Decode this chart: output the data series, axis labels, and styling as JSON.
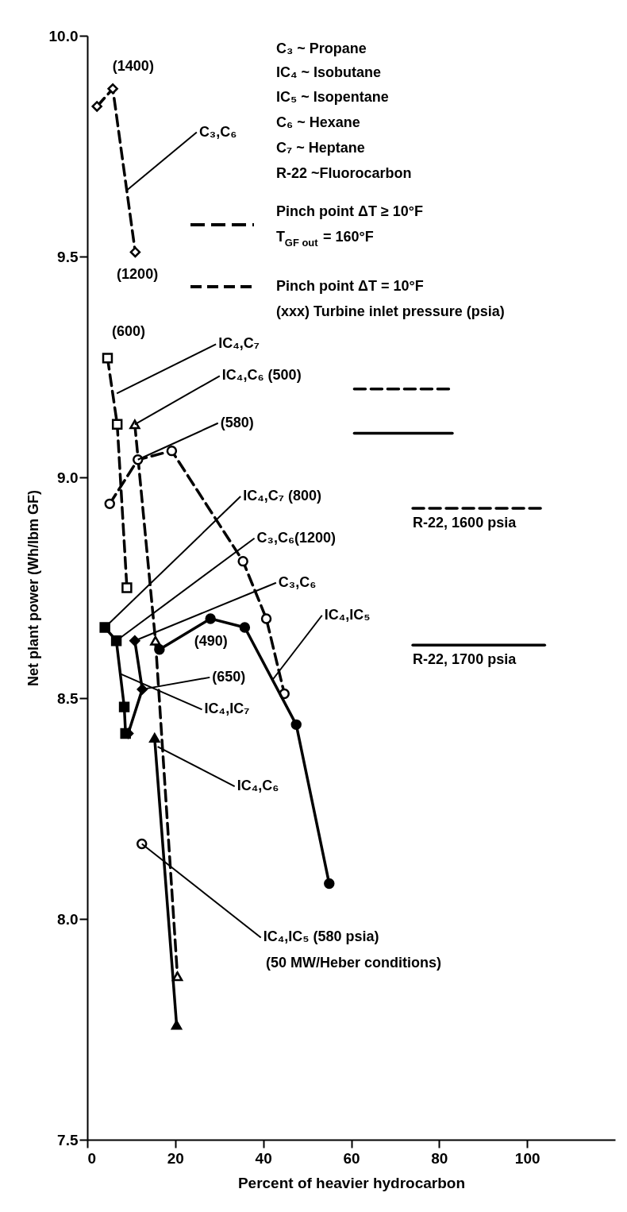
{
  "chart_data": {
    "type": "line",
    "xlabel": "Percent of heavier hydrocarbon",
    "ylabel": "Net plant power (Wh/lbm GF)",
    "xlim": [
      0,
      120
    ],
    "ylim": [
      7.5,
      10
    ],
    "xticks": [
      0,
      20,
      40,
      60,
      80,
      100
    ],
    "yticks": [
      {
        "value": 7.5,
        "label": "7.5"
      },
      {
        "value": 8,
        "label": "8.0"
      },
      {
        "value": 8.5,
        "label": "8.5"
      },
      {
        "value": 9,
        "label": "9.0"
      },
      {
        "value": 9.5,
        "label": "9.5"
      },
      {
        "value": 10,
        "label": "10.0"
      }
    ],
    "grid": false,
    "legend": "right",
    "series": [
      {
        "color": "#000000",
        "x": [
          2.2,
          5.8,
          10.9
        ],
        "values": [
          9.84,
          9.88,
          9.51
        ],
        "line_style": "dashed",
        "marker": "diamond"
      },
      {
        "color": "#000000",
        "x": [
          4.6,
          6.8,
          9.0
        ],
        "values": [
          9.27,
          9.12,
          8.75
        ],
        "line_style": "dashed",
        "marker": "square"
      },
      {
        "color": "#000000",
        "x": [
          10.8,
          15.5,
          20.5
        ],
        "values": [
          9.12,
          8.63,
          7.87
        ],
        "line_style": "dashed",
        "marker": "triangle"
      },
      {
        "color": "#000000",
        "x": [
          15.3,
          20.3
        ],
        "values": [
          8.41,
          7.76
        ],
        "line_style": "solid",
        "marker": "triangle"
      },
      {
        "color": "#000000",
        "x": [
          5.1,
          11.5,
          19.2,
          35.4,
          40.7,
          44.8
        ],
        "values": [
          8.94,
          9.04,
          9.06,
          8.81,
          8.68,
          8.51
        ],
        "line_style": "dashed",
        "marker": "circle"
      },
      {
        "color": "#000000",
        "x": [
          16.4,
          28,
          35.8,
          47.5,
          55
        ],
        "values": [
          8.61,
          8.68,
          8.66,
          8.44,
          8.08
        ],
        "line_style": "solid",
        "marker": "circle"
      },
      {
        "color": "#000000",
        "x": [
          4.0,
          6.6,
          8.4,
          8.7
        ],
        "values": [
          8.66,
          8.63,
          8.48,
          8.42
        ],
        "line_style": "solid",
        "marker": "square"
      },
      {
        "color": "#000000",
        "x": [
          10.8,
          12.5,
          9.3
        ],
        "values": [
          8.63,
          8.52,
          8.42
        ],
        "line_style": "solid",
        "marker": "diamond"
      },
      {
        "type": "scatter",
        "color": "#000000",
        "x": [
          12.4
        ],
        "values": [
          8.17
        ],
        "line_style": "dashed",
        "marker": "circle"
      },
      {
        "color": "#000000",
        "x": [
          60.7,
          83
        ],
        "values": [
          9.2,
          9.2
        ],
        "line_style": "dashed",
        "marker": "none"
      },
      {
        "color": "#000000",
        "x": [
          60.7,
          83
        ],
        "values": [
          9.1,
          9.1
        ],
        "line_style": "solid",
        "marker": "none"
      },
      {
        "name": "R-22, 1600 psia",
        "color": "#000000",
        "x": [
          74,
          104
        ],
        "values": [
          8.93,
          8.93
        ],
        "line_style": "dashed",
        "marker": "none"
      },
      {
        "name": "R-22, 1700 psia",
        "color": "#000000",
        "x": [
          74,
          104
        ],
        "values": [
          8.62,
          8.62
        ],
        "line_style": "solid",
        "marker": "none"
      }
    ],
    "annotations": [
      "C₃ ~ Propane",
      "IC₄ ~ Isobutane",
      "IC₅ ~ Isopentane",
      "C₆ ~ Hexane",
      "C₇ ~ Heptane",
      "R-22 ~Fluorocarbon",
      "Pinch point ΔT ≥ 10°F",
      "T$_{GF out}$ = 160°F",
      "Pinch point ΔT = 10°F",
      "(xxx) Turbine inlet pressure (psia)",
      "(50 MW/Heber conditions)",
      {
        "text": "(1400)",
        "x": 5.8,
        "y": 9.88
      },
      {
        "text": "(1200)",
        "x": 10.9,
        "y": 9.51
      },
      {
        "text": "C₃,C₆",
        "x": 9.0,
        "y": 9.65
      },
      {
        "text": "(600)",
        "x": 4.6,
        "y": 9.27
      },
      {
        "text": "IC₄,C₇",
        "x": 6.7,
        "y": 9.19
      },
      {
        "text": "IC₄,C₆ (500)",
        "x": 10.8,
        "y": 9.12
      },
      {
        "text": "(580)",
        "x": 11.5,
        "y": 9.04
      },
      {
        "text": "IC₄,C₇ (800)",
        "x": 4.0,
        "y": 8.66
      },
      {
        "text": "C₃,C₆(1200)",
        "x": 6.6,
        "y": 8.63
      },
      {
        "text": "C₃,C₆",
        "x": 10.8,
        "y": 8.63
      },
      {
        "text": "IC₄,IC₅",
        "x": 42,
        "y": 8.54
      },
      {
        "text": "(490)",
        "x": 35.8,
        "y": 8.66
      },
      {
        "text": "(650)",
        "x": 12.5,
        "y": 8.52
      },
      {
        "text": "IC₄,IC₇",
        "x": 7.5,
        "y": 8.555
      },
      {
        "text": "IC₄,C₆",
        "x": 16.0,
        "y": 8.39
      },
      {
        "text": "IC₄,IC₅ (580 psia)",
        "x": 12.4,
        "y": 8.17
      }
    ]
  }
}
